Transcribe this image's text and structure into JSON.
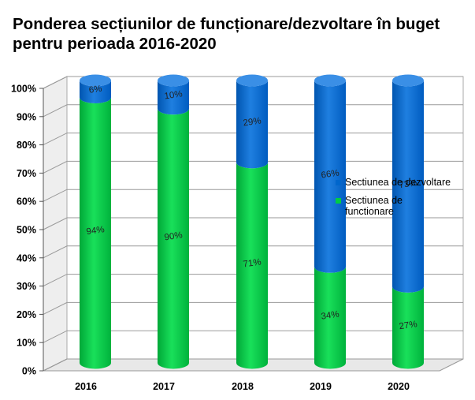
{
  "chart_data": {
    "type": "bar",
    "stacked": true,
    "percent_stacked": true,
    "title": "Ponderea secțiunilor de funcționare/dezvoltare în buget pentru perioada 2016-2020",
    "categories": [
      "2016",
      "2017",
      "2018",
      "2019",
      "2020"
    ],
    "series": [
      {
        "name": "Sectiunea de functionare",
        "values": [
          94,
          90,
          71,
          34,
          27
        ],
        "labels": [
          "94%",
          "90%",
          "71%",
          "34%",
          "27%"
        ],
        "color": "#00CC44"
      },
      {
        "name": "Sectiunea de dezvoltare",
        "values": [
          6,
          10,
          29,
          66,
          73
        ],
        "labels": [
          "6%",
          "10%",
          "29%",
          "66%",
          "73%"
        ],
        "color": "#0066CC"
      }
    ],
    "y_ticks": [
      "0%",
      "10%",
      "20%",
      "30%",
      "40%",
      "50%",
      "60%",
      "70%",
      "80%",
      "90%",
      "100%"
    ],
    "ylim": [
      0,
      100
    ],
    "grid": true,
    "legend": {
      "position": "right",
      "entries": [
        "Sectiunea de dezvoltare",
        "Sectiunea de functionare"
      ]
    }
  }
}
